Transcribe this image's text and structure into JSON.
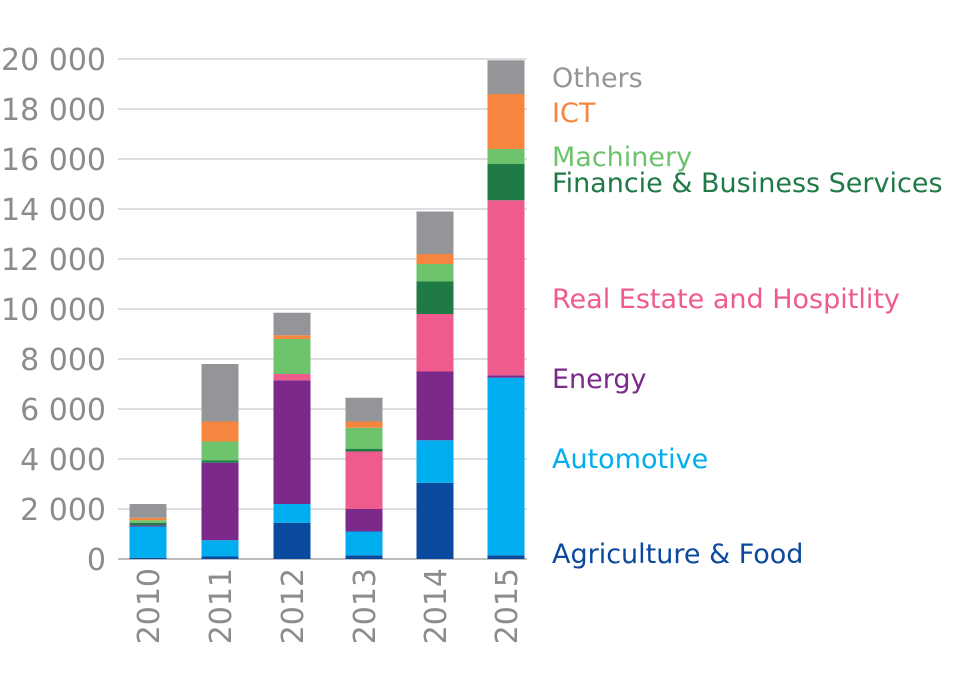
{
  "chart_data": {
    "type": "bar",
    "stacked": true,
    "title": "",
    "xlabel": "",
    "ylabel": "",
    "ylim": [
      0,
      20000
    ],
    "yticks": [
      0,
      2000,
      4000,
      6000,
      8000,
      10000,
      12000,
      14000,
      16000,
      18000,
      20000
    ],
    "ytick_labels": [
      "0",
      "2 000",
      "4 000",
      "6 000",
      "8 000",
      "10 000",
      "12 000",
      "14 000",
      "16 000",
      "18 000",
      "20 000"
    ],
    "grid": true,
    "categories": [
      "2010",
      "2011",
      "2012",
      "2013",
      "2014",
      "2015"
    ],
    "series": [
      {
        "name": "Agriculture & Food",
        "color": "#0a4a9e",
        "values": [
          50,
          100,
          1450,
          150,
          3050,
          150
        ]
      },
      {
        "name": "Automotive",
        "color": "#00aeef",
        "values": [
          1250,
          650,
          750,
          950,
          1700,
          7100
        ]
      },
      {
        "name": "Energy",
        "color": "#7b2a8b",
        "values": [
          50,
          3100,
          4950,
          900,
          2750,
          100
        ]
      },
      {
        "name": "Real Estate and Hospitlity",
        "color": "#ef5b8c",
        "values": [
          0,
          0,
          250,
          2300,
          2300,
          7000
        ]
      },
      {
        "name": "Financie & Business Services",
        "color": "#1f7a46",
        "values": [
          100,
          100,
          0,
          100,
          1300,
          1450
        ]
      },
      {
        "name": "Machinery",
        "color": "#6cc36c",
        "values": [
          100,
          750,
          1400,
          850,
          700,
          600
        ]
      },
      {
        "name": "ICT",
        "color": "#f5853f",
        "values": [
          100,
          800,
          150,
          250,
          400,
          2200
        ]
      },
      {
        "name": "Others",
        "color": "#939598",
        "values": [
          550,
          2300,
          900,
          950,
          1700,
          1350
        ]
      }
    ],
    "legend_position": "right, aligned with 2015 bar segments"
  }
}
